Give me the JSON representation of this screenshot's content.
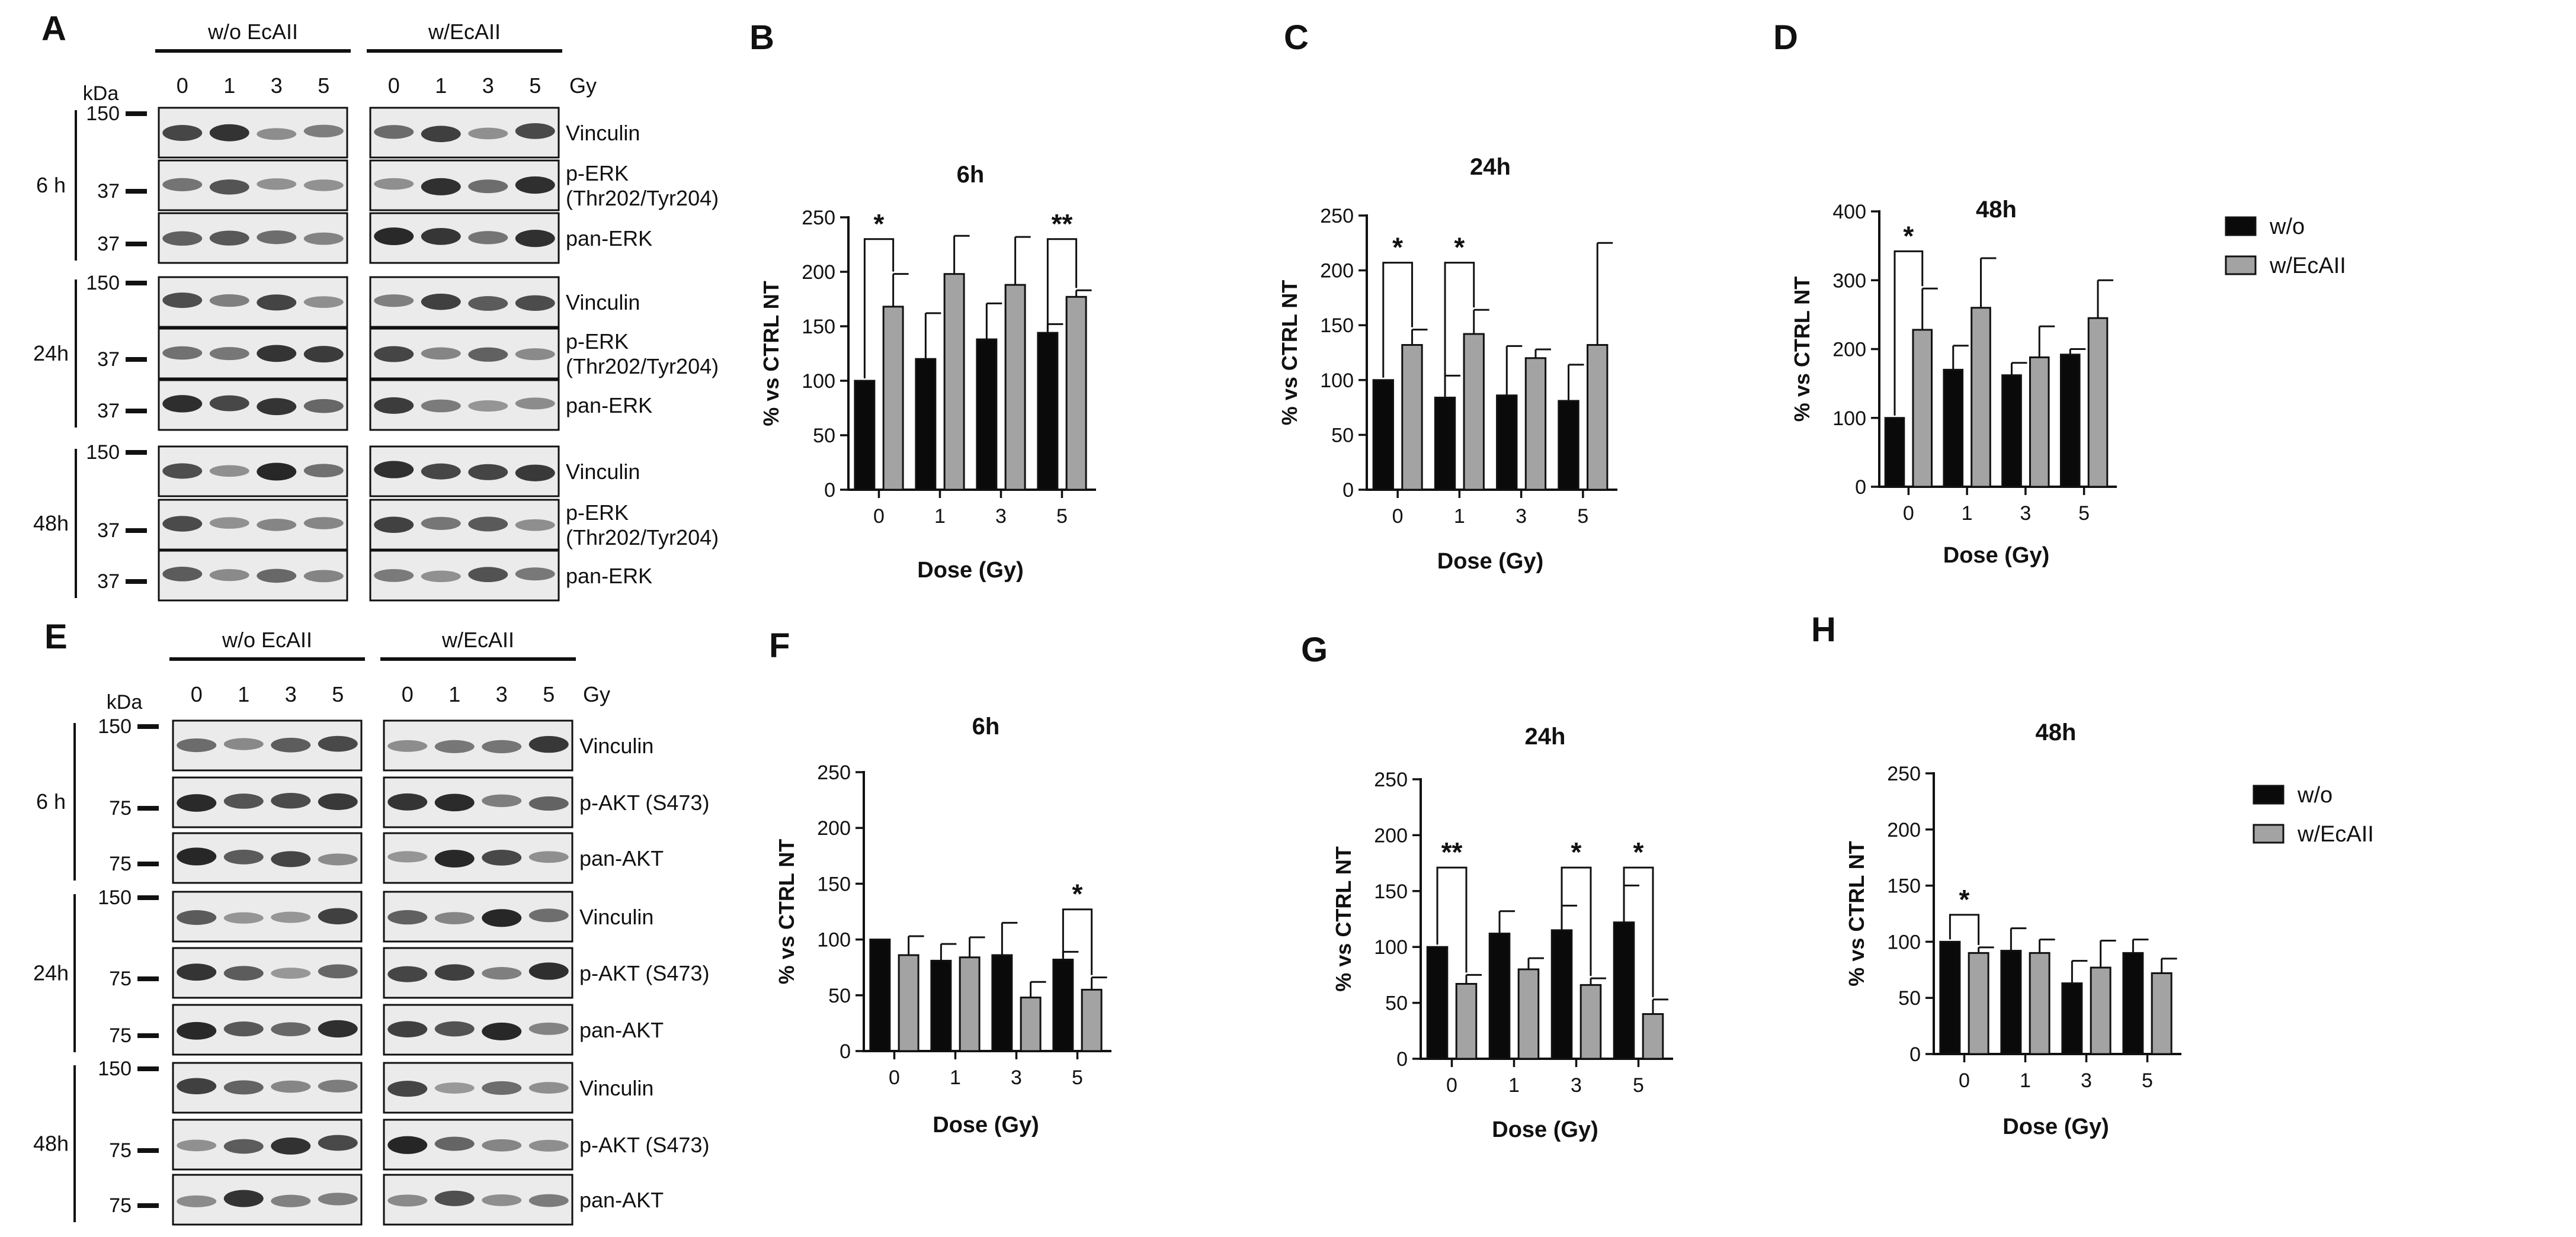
{
  "figure": {
    "panel_letters": [
      "A",
      "B",
      "C",
      "D",
      "E",
      "F",
      "G",
      "H"
    ],
    "colors": {
      "wo": "#0a0a0a",
      "w": "#a3a3a3",
      "axis": "#111111"
    }
  },
  "blots_erk": {
    "group_left": "w/o EcAII",
    "group_right": "w/EcAII",
    "kda_label": "kDa",
    "gy_label": "Gy",
    "doses": [
      "0",
      "1",
      "3",
      "5"
    ],
    "time_blocks": [
      {
        "time": "6 h",
        "rows": [
          {
            "kda": "150",
            "label_lines": [
              "Vinculin"
            ]
          },
          {
            "kda": "37",
            "label_lines": [
              "p-ERK",
              "(Thr202/Tyr204)"
            ]
          },
          {
            "kda": "37",
            "label_lines": [
              "pan-ERK"
            ]
          }
        ]
      },
      {
        "time": "24h",
        "rows": [
          {
            "kda": "150",
            "label_lines": [
              "Vinculin"
            ]
          },
          {
            "kda": "37",
            "label_lines": [
              "p-ERK",
              "(Thr202/Tyr204)"
            ]
          },
          {
            "kda": "37",
            "label_lines": [
              "pan-ERK"
            ]
          }
        ]
      },
      {
        "time": "48h",
        "rows": [
          {
            "kda": "150",
            "label_lines": [
              "Vinculin"
            ]
          },
          {
            "kda": "37",
            "label_lines": [
              "p-ERK",
              "(Thr202/Tyr204)"
            ]
          },
          {
            "kda": "37",
            "label_lines": [
              "pan-ERK"
            ]
          }
        ]
      }
    ]
  },
  "blots_akt": {
    "group_left": "w/o EcAII",
    "group_right": "w/EcAII",
    "kda_label": "kDa",
    "gy_label": "Gy",
    "doses": [
      "0",
      "1",
      "3",
      "5"
    ],
    "time_blocks": [
      {
        "time": "6 h",
        "rows": [
          {
            "kda": "150",
            "label_lines": [
              "Vinculin"
            ]
          },
          {
            "kda": "75",
            "label_lines": [
              "p-AKT (S473)"
            ]
          },
          {
            "kda": "75",
            "label_lines": [
              "pan-AKT"
            ]
          }
        ]
      },
      {
        "time": "24h",
        "rows": [
          {
            "kda": "150",
            "label_lines": [
              "Vinculin"
            ]
          },
          {
            "kda": "75",
            "label_lines": [
              "p-AKT (S473)"
            ]
          },
          {
            "kda": "75",
            "label_lines": [
              "pan-AKT"
            ]
          }
        ]
      },
      {
        "time": "48h",
        "rows": [
          {
            "kda": "150",
            "label_lines": [
              "Vinculin"
            ]
          },
          {
            "kda": "75",
            "label_lines": [
              "p-AKT (S473)"
            ]
          },
          {
            "kda": "75",
            "label_lines": [
              "pan-AKT"
            ]
          }
        ]
      }
    ]
  },
  "legend": {
    "entries": [
      "w/o",
      "w/EcAII"
    ]
  },
  "chart_data": [
    {
      "panel": "B",
      "type": "bar",
      "title": "6h",
      "xlabel": "Dose (Gy)",
      "ylabel": "% vs CTRL NT",
      "categories": [
        "0",
        "1",
        "3",
        "5"
      ],
      "ylim": [
        0,
        250
      ],
      "yticks": [
        "0",
        "50",
        "100",
        "150",
        "200",
        "250"
      ],
      "series": [
        {
          "name": "w/o",
          "values": [
            100,
            120,
            138,
            144
          ],
          "errors": [
            0,
            42,
            33,
            8
          ]
        },
        {
          "name": "w/EcAII",
          "values": [
            168,
            198,
            188,
            177
          ],
          "errors": [
            30,
            35,
            44,
            6
          ]
        }
      ],
      "significance": [
        {
          "category": "0",
          "label": "*",
          "top": 230
        },
        {
          "category": "5",
          "label": "**",
          "top": 230
        }
      ]
    },
    {
      "panel": "C",
      "type": "bar",
      "title": "24h",
      "xlabel": "Dose (Gy)",
      "ylabel": "% vs CTRL NT",
      "categories": [
        "0",
        "1",
        "3",
        "5"
      ],
      "ylim": [
        0,
        250
      ],
      "yticks": [
        "0",
        "50",
        "100",
        "150",
        "200",
        "250"
      ],
      "series": [
        {
          "name": "w/o",
          "values": [
            100,
            84,
            86,
            81
          ],
          "errors": [
            0,
            20,
            45,
            33
          ]
        },
        {
          "name": "w/EcAII",
          "values": [
            132,
            142,
            120,
            132
          ],
          "errors": [
            14,
            22,
            8,
            93
          ]
        }
      ],
      "significance": [
        {
          "category": "0",
          "label": "*",
          "top": 207
        },
        {
          "category": "1",
          "label": "*",
          "top": 207
        }
      ]
    },
    {
      "panel": "D",
      "type": "bar",
      "title": "48h",
      "xlabel": "Dose (Gy)",
      "ylabel": "% vs CTRL NT",
      "categories": [
        "0",
        "1",
        "3",
        "5"
      ],
      "ylim": [
        0,
        400
      ],
      "yticks": [
        "0",
        "100",
        "200",
        "300",
        "400"
      ],
      "series": [
        {
          "name": "w/o",
          "values": [
            100,
            170,
            162,
            192
          ],
          "errors": [
            0,
            35,
            18,
            8
          ]
        },
        {
          "name": "w/EcAII",
          "values": [
            228,
            260,
            188,
            245
          ],
          "errors": [
            60,
            72,
            45,
            55
          ]
        }
      ],
      "significance": [
        {
          "category": "0",
          "label": "*",
          "top": 342
        }
      ]
    },
    {
      "panel": "F",
      "type": "bar",
      "title": "6h",
      "xlabel": "Dose (Gy)",
      "ylabel": "% vs CTRL NT",
      "categories": [
        "0",
        "1",
        "3",
        "5"
      ],
      "ylim": [
        0,
        250
      ],
      "yticks": [
        "0",
        "50",
        "100",
        "150",
        "200",
        "250"
      ],
      "series": [
        {
          "name": "w/o",
          "values": [
            100,
            81,
            86,
            82
          ],
          "errors": [
            0,
            15,
            29,
            7
          ]
        },
        {
          "name": "w/EcAII",
          "values": [
            86,
            84,
            48,
            55
          ],
          "errors": [
            17,
            18,
            14,
            11
          ]
        }
      ],
      "significance": [
        {
          "category": "5",
          "label": "*",
          "top": 127
        }
      ]
    },
    {
      "panel": "G",
      "type": "bar",
      "title": "24h",
      "xlabel": "Dose (Gy)",
      "ylabel": "% vs CTRL NT",
      "categories": [
        "0",
        "1",
        "3",
        "5"
      ],
      "ylim": [
        0,
        250
      ],
      "yticks": [
        "0",
        "50",
        "100",
        "150",
        "200",
        "250"
      ],
      "series": [
        {
          "name": "w/o",
          "values": [
            100,
            112,
            115,
            122
          ],
          "errors": [
            0,
            20,
            22,
            33
          ]
        },
        {
          "name": "w/EcAII",
          "values": [
            67,
            80,
            66,
            40
          ],
          "errors": [
            8,
            10,
            6,
            13
          ]
        }
      ],
      "significance": [
        {
          "category": "0",
          "label": "**",
          "top": 171
        },
        {
          "category": "3",
          "label": "*",
          "top": 171
        },
        {
          "category": "5",
          "label": "*",
          "top": 171
        }
      ]
    },
    {
      "panel": "H",
      "type": "bar",
      "title": "48h",
      "xlabel": "Dose (Gy)",
      "ylabel": "% vs CTRL NT",
      "categories": [
        "0",
        "1",
        "3",
        "5"
      ],
      "ylim": [
        0,
        250
      ],
      "yticks": [
        "0",
        "50",
        "100",
        "150",
        "200",
        "250"
      ],
      "series": [
        {
          "name": "w/o",
          "values": [
            100,
            92,
            63,
            90
          ],
          "errors": [
            0,
            20,
            20,
            12
          ]
        },
        {
          "name": "w/EcAII",
          "values": [
            90,
            90,
            77,
            72
          ],
          "errors": [
            5,
            12,
            24,
            13
          ]
        }
      ],
      "significance": [
        {
          "category": "0",
          "label": "*",
          "top": 124
        }
      ]
    }
  ]
}
